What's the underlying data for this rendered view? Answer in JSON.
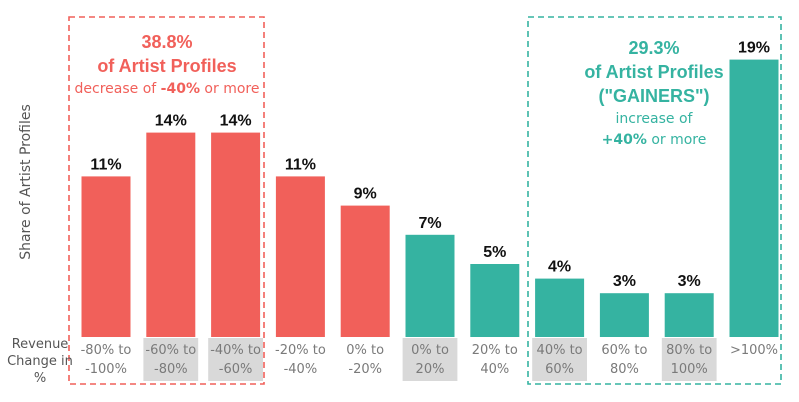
{
  "chart_data": {
    "type": "bar",
    "ylabel": "Share of Artist Profiles",
    "xlabel_lines": [
      "Revenue",
      "Change in",
      "%"
    ],
    "categories": [
      [
        "-80% to",
        "-100%"
      ],
      [
        "-60% to",
        "-80%"
      ],
      [
        "-40% to",
        "-60%"
      ],
      [
        "-20% to",
        "-40%"
      ],
      [
        "0% to",
        "-20%"
      ],
      [
        "0% to",
        "20%"
      ],
      [
        "20% to",
        "40%"
      ],
      [
        "40% to",
        "60%"
      ],
      [
        "60% to",
        "80%"
      ],
      [
        "80% to",
        "100%"
      ],
      [
        ">100%"
      ]
    ],
    "values": [
      11,
      14,
      14,
      11,
      9,
      7,
      5,
      4,
      3,
      3,
      19
    ],
    "value_labels": [
      "11%",
      "14%",
      "14%",
      "11%",
      "9%",
      "7%",
      "5%",
      "4%",
      "3%",
      "3%",
      "19%"
    ],
    "bar_colors": [
      "#f1605a",
      "#f1605a",
      "#f1605a",
      "#f1605a",
      "#f1605a",
      "#35b3a1",
      "#35b3a1",
      "#35b3a1",
      "#35b3a1",
      "#35b3a1",
      "#35b3a1"
    ],
    "shaded_category_bands": [
      false,
      true,
      true,
      false,
      false,
      true,
      false,
      true,
      false,
      true,
      false
    ],
    "ylim": [
      0,
      20
    ],
    "grid": false,
    "annotations": [
      {
        "color": "#f1605a",
        "covers": [
          0,
          1,
          2
        ],
        "big_lines": [
          "38.8%",
          "of Artist Profiles"
        ],
        "small_text": {
          "before": "decrease of ",
          "bold": "-40%",
          "after": " or more"
        }
      },
      {
        "color": "#35b3a1",
        "covers": [
          7,
          8,
          9,
          10
        ],
        "big_lines": [
          "29.3%",
          "of Artist Profiles",
          "(\"GAINERS\")"
        ],
        "small_lines": [
          "increase of"
        ],
        "small_text": {
          "before": "",
          "bold": "+40%",
          "after": " or more"
        }
      }
    ]
  },
  "colors": {
    "decline": "#f1605a",
    "gain": "#35b3a1",
    "band": "#d9d9d9"
  }
}
